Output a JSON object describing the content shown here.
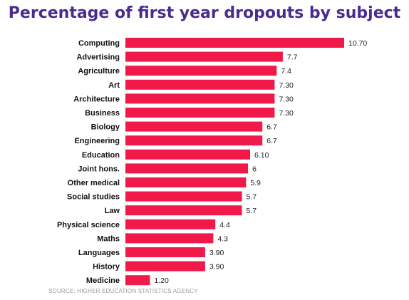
{
  "chart_data": {
    "type": "bar",
    "orientation": "horizontal",
    "title": "Percentage of first year dropouts by subject",
    "categories": [
      "Computing",
      "Advertising",
      "Agriculture",
      "Art",
      "Architecture",
      "Business",
      "Biology",
      "Engineering",
      "Education",
      "Joint hons.",
      "Other medical",
      "Social studies",
      "Law",
      "Physical science",
      "Maths",
      "Languages",
      "History",
      "Medicine"
    ],
    "values": [
      10.7,
      7.7,
      7.4,
      7.3,
      7.3,
      7.3,
      6.7,
      6.7,
      6.1,
      6,
      5.9,
      5.7,
      5.7,
      4.4,
      4.3,
      3.9,
      3.9,
      1.2
    ],
    "value_labels": [
      "10.70",
      "7.7",
      "7.4",
      "7.30",
      "7.30",
      "7.30",
      "6.7",
      "6.7",
      "6.10",
      "6",
      "5.9",
      "5.7",
      "5.7",
      "4.4",
      "4.3",
      "3.90",
      "3.90",
      "1.20"
    ],
    "xlim": [
      0,
      11
    ],
    "grid": false,
    "legend": "none",
    "bar_color": "#f0194a",
    "title_color": "#4b2a8f",
    "source": "SOURCE: HIGHER EDUCATION STATISTICS AGENCY"
  }
}
